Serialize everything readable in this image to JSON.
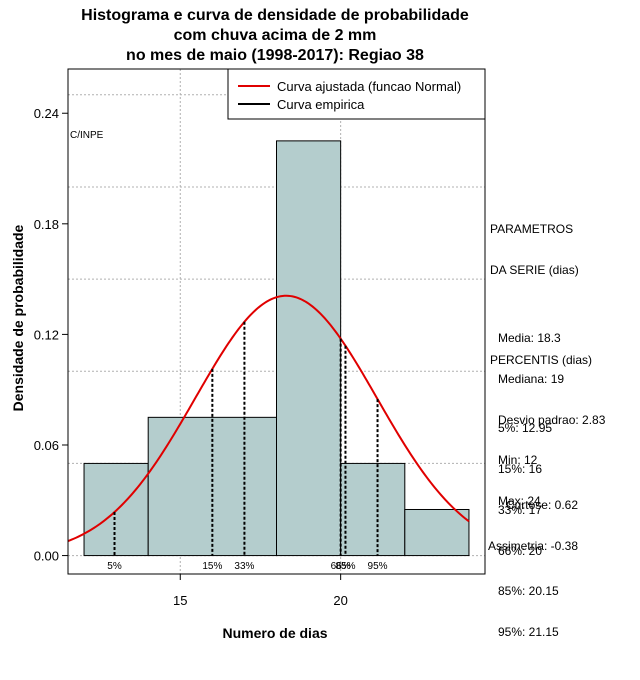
{
  "title_lines": [
    "Histograma e curva de densidade de probabilidade",
    "com chuva acima de 2 mm",
    "no mes de maio (1998-2017): Regiao 38"
  ],
  "watermark": "C/INPE",
  "parameters": {
    "header1": "PARAMETROS",
    "header2": "DA SERIE (dias)",
    "lines": [
      "Media: 18.3",
      "Mediana: 19",
      "Desvio padrao: 2.83",
      "Min: 12",
      "Max: 24"
    ]
  },
  "percentiles": {
    "header": "PERCENTIS (dias)",
    "lines": [
      "5%: 12.95",
      "15%: 16",
      "33%: 17",
      "66%: 20",
      "85%: 20.15",
      "95%: 21.15"
    ]
  },
  "shape": {
    "kurtosis": "Curtose: 0.62",
    "skewness": "Assimetria: -0.38"
  },
  "colors": {
    "bars": "#b4cdcd",
    "fitted": "#e00000",
    "empirical": "#000000",
    "grid": "#b0b0b0"
  },
  "chart_data": {
    "type": "bar",
    "title": "Histograma e curva de densidade de probabilidade com chuva acima de 2 mm no mes de maio (1998-2017): Regiao 38",
    "xlabel": "Numero de dias",
    "ylabel": "Densidade de probabilidade",
    "xlim": [
      11.5,
      24.5
    ],
    "ylim": [
      -0.01,
      0.264
    ],
    "xticks": [
      15,
      20
    ],
    "yticks": [
      0.0,
      0.06,
      0.12,
      0.18,
      0.24
    ],
    "ytick_labels": [
      "0.00",
      "0.06",
      "0.12",
      "0.18",
      "0.24"
    ],
    "bins": [
      {
        "x0": 12,
        "x1": 14,
        "density": 0.05
      },
      {
        "x0": 14,
        "x1": 18,
        "density": 0.075
      },
      {
        "x0": 18,
        "x1": 20,
        "density": 0.225
      },
      {
        "x0": 20,
        "x1": 22,
        "density": 0.05
      },
      {
        "x0": 22,
        "x1": 24,
        "density": 0.025
      }
    ],
    "fitted_curve": {
      "name": "Curva ajustada (funcao Normal)",
      "mean": 18.3,
      "sd": 2.83,
      "x_from": 11.5,
      "x_to": 24
    },
    "empirical_curve": {
      "name": "Curva empirica"
    },
    "percentile_lines": [
      {
        "label": "5%",
        "value": 12.95
      },
      {
        "label": "15%",
        "value": 16
      },
      {
        "label": "33%",
        "value": 17
      },
      {
        "label": "66%",
        "value": 20
      },
      {
        "label": "85%",
        "value": 20.15
      },
      {
        "label": "95%",
        "value": 21.15
      }
    ],
    "legend": {
      "position": "top-right",
      "entries": [
        "Curva ajustada (funcao Normal)",
        "Curva empirica"
      ]
    },
    "grid": true
  }
}
